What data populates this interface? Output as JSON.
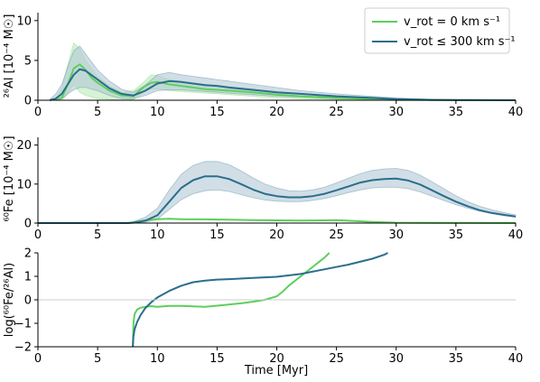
{
  "colors": {
    "non_rotating": "#5ccf5c",
    "rotating": "#2a6e8c",
    "rot_band": "#b3c8d6",
    "nonrot_band": "#b6e8b0",
    "zero_line": "#cccccc"
  },
  "chart_data": [
    {
      "type": "area",
      "ylabel": "²⁶Al [10⁻⁴ M☉]",
      "xlim": [
        0,
        40
      ],
      "ylim": [
        0,
        11
      ],
      "xticks": [
        0,
        5,
        10,
        15,
        20,
        25,
        30,
        35,
        40
      ],
      "yticks": [
        0,
        5,
        10
      ],
      "legend": {
        "position": "top-right",
        "entries": [
          {
            "label": "v_rot = 0 km s⁻¹",
            "color": "#5ccf5c"
          },
          {
            "label": "v_rot ≤ 300 km s⁻¹",
            "color": "#2a6e8c"
          }
        ]
      },
      "series": [
        {
          "name": "v_rot = 0 km s⁻¹",
          "color": "#5ccf5c",
          "x": [
            1.5,
            2,
            2.5,
            3,
            3.5,
            4,
            4.5,
            5,
            6,
            7,
            8,
            8.5,
            9,
            9.5,
            10,
            11,
            12,
            13,
            14,
            15,
            16,
            18,
            20,
            22,
            25,
            28,
            30,
            33,
            36,
            40
          ],
          "y": [
            0,
            0.3,
            2.0,
            4.0,
            4.5,
            3.8,
            2.8,
            2.2,
            1.2,
            0.6,
            0.5,
            1.2,
            1.8,
            2.2,
            2.3,
            2.0,
            1.8,
            1.6,
            1.4,
            1.3,
            1.2,
            1.0,
            0.7,
            0.5,
            0.3,
            0.15,
            0.05,
            0.02,
            0.0,
            0.0
          ],
          "lower": [
            0,
            0,
            0.8,
            2.0,
            1.0,
            0.6,
            0.4,
            0.2,
            0.1,
            0.0,
            0.1,
            0.6,
            1.2,
            1.4,
            1.4,
            1.2,
            1.1,
            1.0,
            0.9,
            0.8,
            0.7,
            0.5,
            0.3,
            0.2,
            0.1,
            0.05,
            0.0,
            0.0,
            0.0,
            0.0
          ],
          "upper": [
            0.2,
            1.5,
            4.5,
            7.2,
            6.5,
            5.0,
            4.0,
            3.0,
            1.8,
            1.0,
            1.2,
            1.8,
            2.5,
            3.2,
            3.1,
            2.6,
            2.4,
            2.2,
            2.0,
            1.8,
            1.7,
            1.4,
            1.1,
            0.8,
            0.5,
            0.3,
            0.1,
            0.05,
            0.0,
            0.0
          ]
        },
        {
          "name": "v_rot ≤ 300 km s⁻¹",
          "color": "#2a6e8c",
          "x": [
            1,
            1.5,
            2,
            2.5,
            3,
            3.5,
            4,
            5,
            6,
            7,
            8,
            9,
            10,
            11,
            12,
            13,
            14,
            15,
            16,
            18,
            20,
            22,
            25,
            28,
            30,
            33,
            36,
            40
          ],
          "y": [
            0,
            0.2,
            0.8,
            2.0,
            3.2,
            3.9,
            3.7,
            2.6,
            1.5,
            0.8,
            0.6,
            1.2,
            2.1,
            2.4,
            2.3,
            2.1,
            1.9,
            1.8,
            1.6,
            1.3,
            1.0,
            0.8,
            0.5,
            0.3,
            0.15,
            0.05,
            0.02,
            0.0
          ],
          "lower": [
            0,
            0,
            0.2,
            0.8,
            1.3,
            1.6,
            1.6,
            1.2,
            0.6,
            0.2,
            0.2,
            0.6,
            1.2,
            1.3,
            1.3,
            1.2,
            1.1,
            1.0,
            0.9,
            0.7,
            0.5,
            0.4,
            0.2,
            0.1,
            0.05,
            0.0,
            0.0,
            0.0
          ],
          "upper": [
            0.1,
            0.8,
            2.0,
            4.2,
            6.2,
            6.8,
            5.8,
            3.8,
            2.4,
            1.4,
            1.0,
            1.9,
            3.2,
            3.5,
            3.2,
            3.0,
            2.8,
            2.6,
            2.4,
            2.0,
            1.6,
            1.2,
            0.8,
            0.5,
            0.3,
            0.12,
            0.05,
            0.0
          ]
        }
      ]
    },
    {
      "type": "area",
      "ylabel": "⁶⁰Fe [10⁻⁴ M☉]",
      "xlim": [
        0,
        40
      ],
      "ylim": [
        0,
        22
      ],
      "xticks": [
        0,
        5,
        10,
        15,
        20,
        25,
        30,
        35,
        40
      ],
      "yticks": [
        0,
        10,
        20
      ],
      "series": [
        {
          "name": "v_rot = 0 km s⁻¹",
          "color": "#5ccf5c",
          "x": [
            0,
            7.5,
            8,
            9,
            10,
            11,
            12,
            14,
            16,
            18,
            20,
            22,
            24,
            25,
            26,
            28,
            30,
            35,
            40
          ],
          "y": [
            0,
            0,
            0.2,
            0.7,
            1.0,
            1.1,
            1.0,
            0.95,
            0.85,
            0.75,
            0.7,
            0.65,
            0.7,
            0.75,
            0.6,
            0.3,
            0.1,
            0.02,
            0.0
          ]
        },
        {
          "name": "v_rot ≤ 300 km s⁻¹",
          "color": "#2a6e8c",
          "x": [
            0,
            7.5,
            8,
            9,
            10,
            11,
            12,
            13,
            14,
            15,
            16,
            17,
            18,
            19,
            20,
            21,
            22,
            23,
            24,
            25,
            26,
            27,
            28,
            29,
            30,
            31,
            32,
            33,
            34,
            35,
            36,
            37,
            38,
            39,
            40
          ],
          "y": [
            0,
            0,
            0.1,
            0.6,
            2.0,
            5.5,
            9.0,
            11.0,
            12.0,
            12.0,
            11.3,
            10.0,
            8.6,
            7.5,
            6.9,
            6.6,
            6.6,
            6.9,
            7.5,
            8.4,
            9.4,
            10.4,
            11.0,
            11.3,
            11.4,
            10.9,
            9.9,
            8.4,
            6.9,
            5.5,
            4.3,
            3.3,
            2.6,
            2.1,
            1.7
          ],
          "lower": [
            0,
            0,
            0.0,
            0.2,
            1.0,
            3.5,
            6.0,
            7.5,
            8.3,
            8.5,
            8.1,
            7.3,
            6.5,
            5.9,
            5.6,
            5.5,
            5.5,
            5.8,
            6.3,
            7.0,
            7.8,
            8.5,
            9.0,
            9.2,
            9.2,
            8.8,
            8.0,
            6.9,
            5.8,
            4.7,
            3.8,
            3.0,
            2.4,
            1.9,
            1.5
          ],
          "upper": [
            0,
            0,
            0.4,
            1.5,
            3.8,
            8.5,
            12.5,
            14.8,
            15.8,
            15.8,
            15.0,
            13.4,
            11.6,
            10.0,
            9.0,
            8.3,
            8.2,
            8.5,
            9.2,
            10.3,
            11.5,
            12.7,
            13.5,
            13.9,
            14.0,
            13.5,
            12.3,
            10.6,
            8.8,
            7.0,
            5.5,
            4.3,
            3.4,
            2.7,
            2.1
          ]
        }
      ]
    },
    {
      "type": "line",
      "ylabel": "log(⁶⁰Fe/²⁶Al)",
      "xlabel": "Time [Myr]",
      "xlim": [
        0,
        40
      ],
      "ylim": [
        -2,
        2
      ],
      "xticks": [
        0,
        5,
        10,
        15,
        20,
        25,
        30,
        35,
        40
      ],
      "yticks": [
        -2,
        -1,
        0,
        1,
        2
      ],
      "series": [
        {
          "name": "v_rot = 0 km s⁻¹",
          "color": "#5ccf5c",
          "x": [
            7.95,
            8.0,
            8.1,
            8.3,
            8.6,
            9.0,
            9.5,
            10.0,
            11,
            12,
            13,
            14,
            15,
            16,
            17,
            18,
            19,
            20,
            20.5,
            21,
            22,
            23,
            24,
            24.4
          ],
          "y": [
            -2.0,
            -1.0,
            -0.6,
            -0.42,
            -0.34,
            -0.3,
            -0.27,
            -0.3,
            -0.26,
            -0.26,
            -0.28,
            -0.3,
            -0.25,
            -0.2,
            -0.15,
            -0.08,
            0.0,
            0.15,
            0.35,
            0.6,
            1.0,
            1.4,
            1.8,
            2.0
          ]
        },
        {
          "name": "v_rot ≤ 300 km s⁻¹",
          "color": "#2a6e8c",
          "x": [
            7.95,
            8.0,
            8.1,
            8.3,
            8.6,
            9.0,
            9.5,
            10,
            11,
            12,
            13,
            14,
            15,
            16,
            18,
            20,
            22,
            24,
            26,
            28,
            29,
            29.3
          ],
          "y": [
            -2.0,
            -1.55,
            -1.25,
            -0.95,
            -0.65,
            -0.35,
            -0.1,
            0.1,
            0.38,
            0.6,
            0.75,
            0.82,
            0.86,
            0.88,
            0.93,
            0.98,
            1.1,
            1.3,
            1.5,
            1.75,
            1.92,
            2.0
          ]
        }
      ]
    }
  ]
}
